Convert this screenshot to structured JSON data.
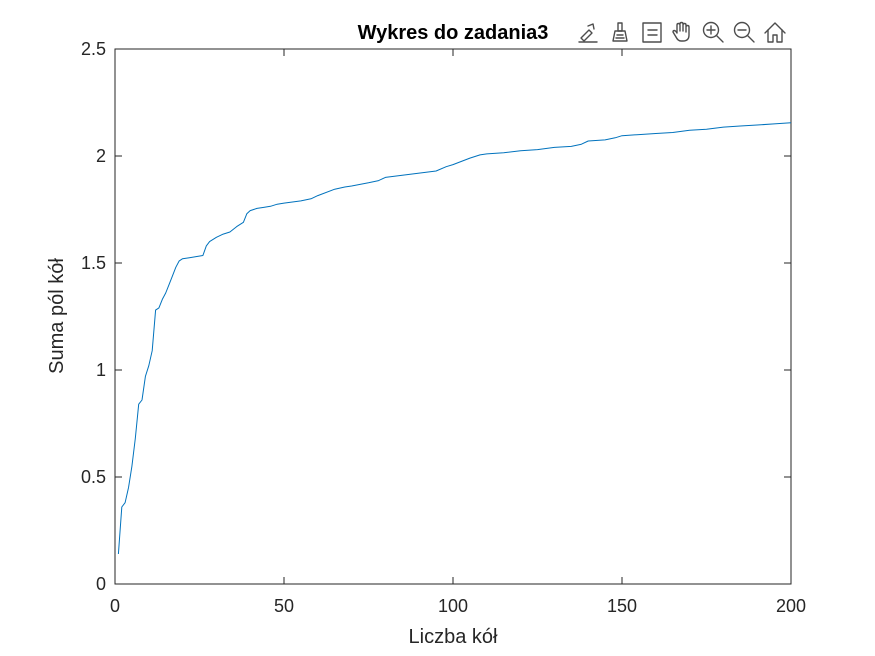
{
  "chart_data": {
    "type": "line",
    "title": "Wykres do zadania3",
    "xlabel": "Liczba kół",
    "ylabel": "Suma pól kół",
    "xlim": [
      0,
      200
    ],
    "ylim": [
      0,
      2.5
    ],
    "xticks": [
      0,
      50,
      100,
      150,
      200
    ],
    "xtick_labels": [
      "0",
      "50",
      "100",
      "150",
      "200"
    ],
    "yticks": [
      0,
      0.5,
      1,
      1.5,
      2,
      2.5
    ],
    "ytick_labels": [
      "0",
      "0.5",
      "1",
      "1.5",
      "2",
      "2.5"
    ],
    "grid": false,
    "series": [
      {
        "color": "#0072bd",
        "x": [
          1,
          2,
          3,
          4,
          5,
          6,
          7,
          8,
          9,
          10,
          11,
          12,
          13,
          14,
          15,
          16,
          17,
          18,
          19,
          20,
          22,
          24,
          26,
          27,
          28,
          30,
          32,
          34,
          36,
          38,
          39,
          40,
          42,
          44,
          46,
          48,
          50,
          55,
          58,
          60,
          65,
          68,
          70,
          75,
          78,
          80,
          85,
          90,
          95,
          98,
          100,
          105,
          108,
          110,
          115,
          120,
          125,
          130,
          135,
          138,
          140,
          145,
          148,
          150,
          155,
          160,
          165,
          170,
          175,
          180,
          185,
          190,
          195,
          200
        ],
        "y": [
          0.14,
          0.36,
          0.38,
          0.45,
          0.55,
          0.68,
          0.84,
          0.86,
          0.97,
          1.02,
          1.09,
          1.28,
          1.29,
          1.33,
          1.36,
          1.4,
          1.44,
          1.48,
          1.51,
          1.52,
          1.525,
          1.53,
          1.535,
          1.58,
          1.6,
          1.62,
          1.635,
          1.645,
          1.67,
          1.69,
          1.73,
          1.745,
          1.755,
          1.76,
          1.765,
          1.775,
          1.78,
          1.79,
          1.8,
          1.815,
          1.845,
          1.855,
          1.86,
          1.875,
          1.885,
          1.9,
          1.91,
          1.92,
          1.93,
          1.95,
          1.96,
          1.99,
          2.005,
          2.01,
          2.015,
          2.025,
          2.03,
          2.04,
          2.045,
          2.055,
          2.07,
          2.075,
          2.085,
          2.095,
          2.1,
          2.105,
          2.11,
          2.12,
          2.125,
          2.135,
          2.14,
          2.145,
          2.15,
          2.155
        ]
      }
    ]
  },
  "toolbar": [
    {
      "name": "edit-data-tip-button",
      "icon": "pencil-arrow-icon"
    },
    {
      "name": "brush-button",
      "icon": "brush-icon"
    },
    {
      "name": "legend-button",
      "icon": "list-icon"
    },
    {
      "name": "pan-button",
      "icon": "hand-icon"
    },
    {
      "name": "zoom-in-button",
      "icon": "zoom-in-icon"
    },
    {
      "name": "zoom-out-button",
      "icon": "zoom-out-icon"
    },
    {
      "name": "restore-view-button",
      "icon": "home-icon"
    }
  ]
}
